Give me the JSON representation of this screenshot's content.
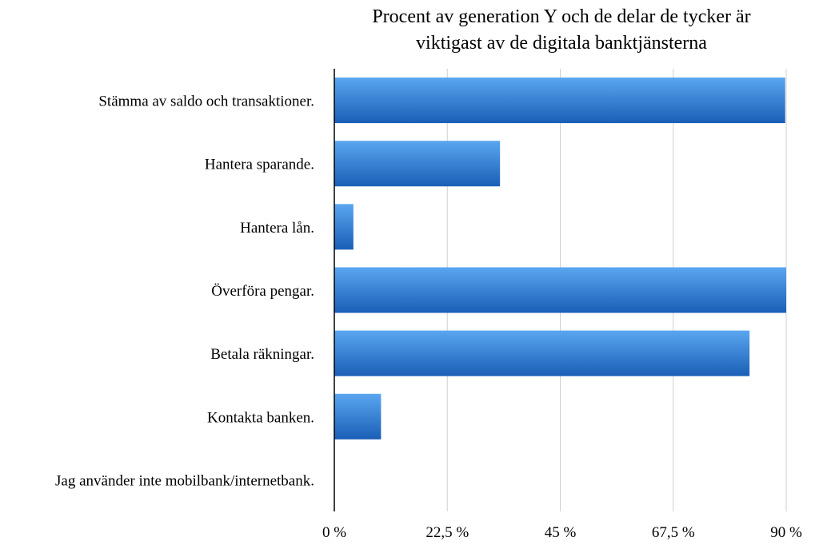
{
  "chart_data": {
    "type": "bar",
    "orientation": "horizontal",
    "title": "Procent av generation Y och de delar de tycker är viktigast av de digitala banktjänsterna",
    "title_lines": [
      "Procent av generation Y och de delar de tycker är",
      "viktigast av de digitala banktjänsterna"
    ],
    "categories": [
      "Stämma av saldo och transaktioner.",
      "Hantera sparande.",
      "Hantera lån.",
      "Överföra pengar.",
      "Betala räkningar.",
      "Kontakta banken.",
      "Jag använder inte mobilbank/internetbank."
    ],
    "values": [
      89.8,
      33.0,
      3.8,
      90.0,
      82.7,
      9.3,
      0
    ],
    "xlim": [
      0,
      90
    ],
    "x_ticks": [
      0,
      22.5,
      45,
      67.5,
      90
    ],
    "x_tick_labels": [
      "0 %",
      "22,5 %",
      "45 %",
      "67,5 %",
      "90 %"
    ],
    "xlabel": "",
    "ylabel": "",
    "grid": "vertical",
    "legend": "none",
    "colors": {
      "bar_light": "#5aa6f0",
      "bar_dark": "#1a5fb6",
      "grid": "#d0d0d0",
      "axis": "#000000"
    }
  }
}
